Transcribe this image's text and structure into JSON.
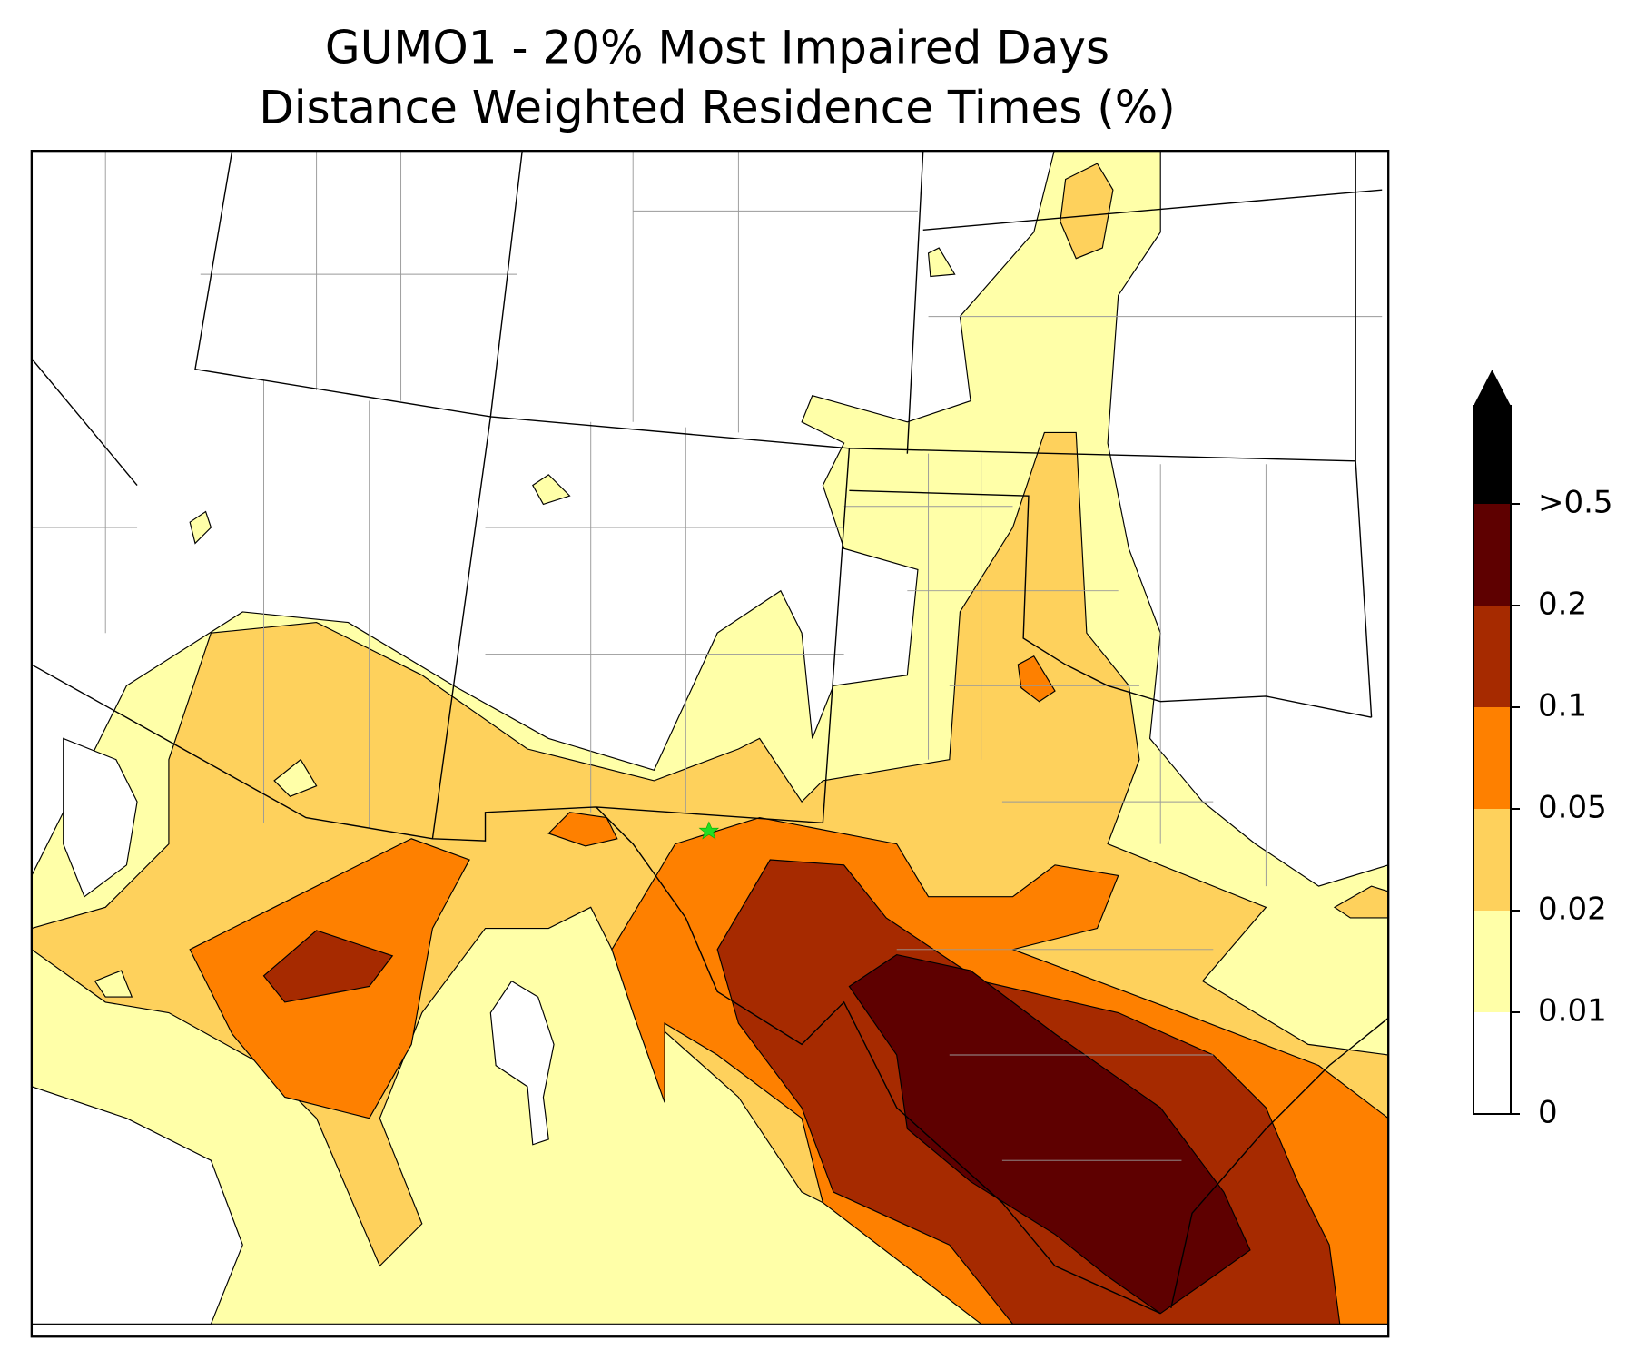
{
  "title": [
    "GUMO1 - 20% Most Impaired Days",
    "Distance Weighted Residence Times (%)"
  ],
  "colorbar": {
    "levels": [
      0,
      0.01,
      0.02,
      0.05,
      0.1,
      0.2,
      {
        "value": 0.5,
        "label": ">0.5"
      }
    ],
    "colors": [
      "#ffffff",
      "#ffffa8",
      "#fed15c",
      "#fe8000",
      "#a62a00",
      "#5e0000",
      "#000000"
    ]
  }
}
